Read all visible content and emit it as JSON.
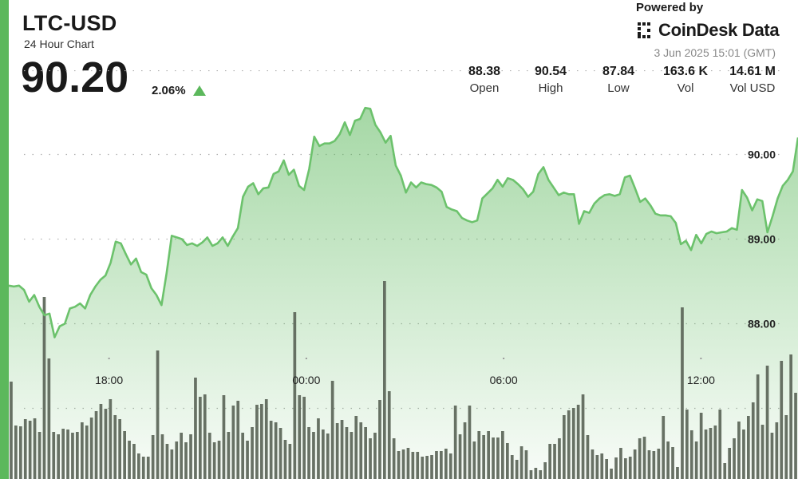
{
  "header": {
    "symbol": "LTC-USD",
    "subtitle": "24 Hour Chart",
    "price": "90.20",
    "change": "2.06%"
  },
  "branding": {
    "powered_by": "Powered by",
    "name": "CoinDesk Data",
    "timestamp": "3 Jun 2025 15:01 (GMT)"
  },
  "stats": [
    {
      "value": "88.38",
      "label": "Open"
    },
    {
      "value": "90.54",
      "label": "High"
    },
    {
      "value": "87.84",
      "label": "Low"
    },
    {
      "value": "163.6 K",
      "label": "Vol"
    },
    {
      "value": "14.61 M",
      "label": "Vol USD"
    }
  ],
  "colors": {
    "accent": "#5cb85c",
    "line": "#6cc26c",
    "volume_bar": "#5d6659",
    "up_arrow": "#5cb85c"
  },
  "icons": {
    "brand": "coindesk-logo-icon",
    "change": "triangle-up-icon"
  },
  "chart_data": {
    "type": "line",
    "title": "LTC-USD",
    "subtitle": "24 Hour Chart",
    "x_tick_labels": [
      "18:00",
      "00:00",
      "06:00",
      "12:00"
    ],
    "x_tick_hours": [
      3,
      9,
      15,
      21
    ],
    "y_tick_labels": [
      "88.00",
      "89.00",
      "90.00"
    ],
    "y_ticks": [
      88,
      89,
      90
    ],
    "ylim": [
      87.0,
      91.3
    ],
    "xlim": [
      0,
      24
    ],
    "grid": "horizontal-dotted",
    "series": [
      {
        "values": [
          88.45,
          88.44,
          88.45,
          88.4,
          88.26,
          88.34,
          88.2,
          88.1,
          88.12,
          87.84,
          87.97,
          88.0,
          88.18,
          88.2,
          88.24,
          88.18,
          88.34,
          88.44,
          88.52,
          88.57,
          88.72,
          88.97,
          88.95,
          88.82,
          88.7,
          88.77,
          88.61,
          88.58,
          88.42,
          88.34,
          88.22,
          88.6,
          89.04,
          89.02,
          89.0,
          88.93,
          88.95,
          88.92,
          88.96,
          89.02,
          88.92,
          88.95,
          89.02,
          88.92,
          89.03,
          89.13,
          89.5,
          89.62,
          89.66,
          89.53,
          89.6,
          89.61,
          89.77,
          89.8,
          89.93,
          89.76,
          89.82,
          89.63,
          89.58,
          89.83,
          90.21,
          90.1,
          90.13,
          90.13,
          90.16,
          90.24,
          90.38,
          90.23,
          90.4,
          90.42,
          90.55,
          90.54,
          90.35,
          90.26,
          90.14,
          90.22,
          89.87,
          89.75,
          89.55,
          89.67,
          89.61,
          89.67,
          89.65,
          89.64,
          89.61,
          89.56,
          89.38,
          89.35,
          89.33,
          89.25,
          89.22,
          89.2,
          89.22,
          89.48,
          89.54,
          89.6,
          89.7,
          89.62,
          89.72,
          89.7,
          89.65,
          89.59,
          89.5,
          89.56,
          89.77,
          89.85,
          89.7,
          89.61,
          89.52,
          89.55,
          89.53,
          89.53,
          89.18,
          89.33,
          89.31,
          89.42,
          89.48,
          89.52,
          89.53,
          89.51,
          89.53,
          89.73,
          89.75,
          89.6,
          89.44,
          89.48,
          89.4,
          89.3,
          89.28,
          89.28,
          89.27,
          89.19,
          88.94,
          88.98,
          88.87,
          89.05,
          88.95,
          89.06,
          89.09,
          89.07,
          89.08,
          89.09,
          89.13,
          89.11,
          89.58,
          89.49,
          89.34,
          89.47,
          89.45,
          89.08,
          89.27,
          89.48,
          89.63,
          89.7,
          89.8,
          90.2
        ]
      }
    ],
    "volume": [
      122,
      67,
      66,
      75,
      73,
      76,
      59,
      228,
      151,
      59,
      56,
      63,
      62,
      58,
      59,
      71,
      67,
      77,
      85,
      94,
      88,
      100,
      80,
      75,
      60,
      48,
      44,
      32,
      28,
      28,
      55,
      161,
      56,
      44,
      37,
      47,
      58,
      46,
      56,
      127,
      103,
      106,
      58,
      46,
      48,
      105,
      59,
      92,
      98,
      58,
      48,
      65,
      93,
      94,
      100,
      73,
      71,
      64,
      49,
      44,
      209,
      105,
      103,
      65,
      59,
      76,
      62,
      57,
      123,
      70,
      74,
      65,
      59,
      79,
      71,
      65,
      51,
      58,
      99,
      248,
      110,
      51,
      35,
      37,
      39,
      34,
      34,
      28,
      29,
      30,
      35,
      35,
      38,
      32,
      92,
      56,
      71,
      92,
      47,
      60,
      55,
      60,
      52,
      52,
      60,
      45,
      30,
      24,
      41,
      36,
      11,
      14,
      11,
      21,
      44,
      44,
      51,
      80,
      86,
      89,
      93,
      106,
      55,
      37,
      30,
      32,
      25,
      13,
      27,
      39,
      26,
      28,
      37,
      51,
      53,
      36,
      35,
      38,
      79,
      47,
      40,
      15,
      215,
      87,
      61,
      47,
      83,
      62,
      64,
      67,
      87,
      20,
      39,
      51,
      72,
      62,
      79,
      96,
      131,
      68,
      142,
      58,
      71,
      148,
      80,
      156,
      108
    ]
  }
}
